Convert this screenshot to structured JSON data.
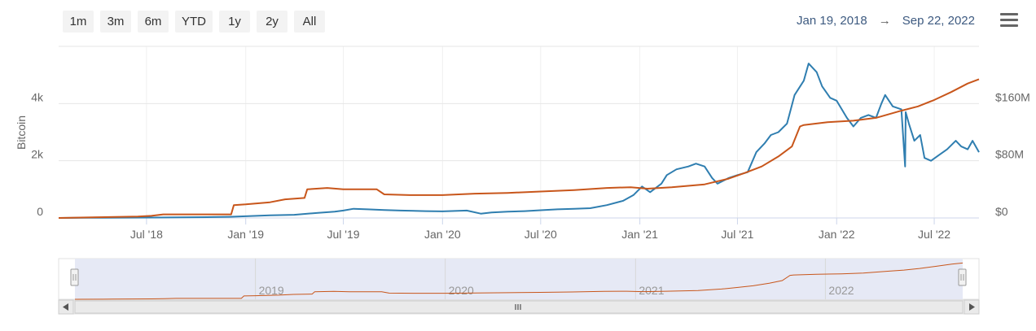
{
  "toolbar": {
    "zoom_buttons": [
      "1m",
      "3m",
      "6m",
      "YTD",
      "1y",
      "2y",
      "All"
    ],
    "range_from": "Jan 19, 2018",
    "range_arrow": "→",
    "range_to": "Sep 22, 2022"
  },
  "colors": {
    "bitcoin_series": "#2f7eb0",
    "usd_series": "#c8561b",
    "navigator_fill": "#e6e9f5"
  },
  "navigator": {
    "year_labels": [
      "2019",
      "2020",
      "2021",
      "2022"
    ],
    "scrollbar_icon": "grip-icon"
  },
  "chart_data": {
    "type": "line",
    "title": "",
    "x_range": [
      "2018-01-19",
      "2022-09-22"
    ],
    "x_tick_labels": [
      "Jul '18",
      "Jan '19",
      "Jul '19",
      "Jan '20",
      "Jul '20",
      "Jan '21",
      "Jul '21",
      "Jan '22",
      "Jul '22"
    ],
    "y_left": {
      "label": "Bitcoin",
      "ylim": [
        0,
        6000
      ],
      "tick_labels": [
        "0",
        "2k",
        "4k"
      ]
    },
    "y_right": {
      "label": "",
      "ylim": [
        0,
        240
      ],
      "tick_labels": [
        "$0",
        "$80M",
        "$160M"
      ]
    },
    "grid": true,
    "series": [
      {
        "axis": "left",
        "points": [
          [
            "2018-01-19",
            0
          ],
          [
            "2018-03-15",
            5
          ],
          [
            "2018-06-01",
            10
          ],
          [
            "2018-07-15",
            15
          ],
          [
            "2018-09-01",
            20
          ],
          [
            "2018-11-01",
            30
          ],
          [
            "2018-12-01",
            40
          ],
          [
            "2019-01-01",
            60
          ],
          [
            "2019-02-15",
            90
          ],
          [
            "2019-04-01",
            110
          ],
          [
            "2019-05-15",
            180
          ],
          [
            "2019-06-15",
            220
          ],
          [
            "2019-07-01",
            260
          ],
          [
            "2019-07-20",
            320
          ],
          [
            "2019-08-15",
            300
          ],
          [
            "2019-09-15",
            280
          ],
          [
            "2019-10-15",
            260
          ],
          [
            "2019-12-01",
            240
          ],
          [
            "2020-01-01",
            230
          ],
          [
            "2020-02-15",
            260
          ],
          [
            "2020-03-12",
            150
          ],
          [
            "2020-04-01",
            190
          ],
          [
            "2020-05-01",
            220
          ],
          [
            "2020-06-01",
            240
          ],
          [
            "2020-07-01",
            270
          ],
          [
            "2020-08-01",
            300
          ],
          [
            "2020-09-01",
            320
          ],
          [
            "2020-10-01",
            340
          ],
          [
            "2020-11-01",
            450
          ],
          [
            "2020-12-01",
            600
          ],
          [
            "2020-12-20",
            800
          ],
          [
            "2021-01-05",
            1100
          ],
          [
            "2021-01-20",
            900
          ],
          [
            "2021-02-10",
            1200
          ],
          [
            "2021-02-20",
            1500
          ],
          [
            "2021-03-10",
            1700
          ],
          [
            "2021-04-01",
            1800
          ],
          [
            "2021-04-15",
            1900
          ],
          [
            "2021-05-01",
            1800
          ],
          [
            "2021-05-15",
            1400
          ],
          [
            "2021-05-25",
            1200
          ],
          [
            "2021-06-15",
            1400
          ],
          [
            "2021-07-01",
            1500
          ],
          [
            "2021-07-20",
            1600
          ],
          [
            "2021-08-05",
            2300
          ],
          [
            "2021-08-20",
            2600
          ],
          [
            "2021-09-01",
            2900
          ],
          [
            "2021-09-15",
            3000
          ],
          [
            "2021-10-01",
            3300
          ],
          [
            "2021-10-15",
            4300
          ],
          [
            "2021-11-01",
            4800
          ],
          [
            "2021-11-10",
            5400
          ],
          [
            "2021-11-25",
            5100
          ],
          [
            "2021-12-05",
            4600
          ],
          [
            "2021-12-20",
            4200
          ],
          [
            "2022-01-01",
            4100
          ],
          [
            "2022-01-20",
            3500
          ],
          [
            "2022-02-01",
            3200
          ],
          [
            "2022-02-15",
            3500
          ],
          [
            "2022-03-01",
            3600
          ],
          [
            "2022-03-15",
            3500
          ],
          [
            "2022-03-25",
            4000
          ],
          [
            "2022-04-01",
            4300
          ],
          [
            "2022-04-15",
            3900
          ],
          [
            "2022-05-01",
            3800
          ],
          [
            "2022-05-08",
            1800
          ],
          [
            "2022-05-09",
            3700
          ],
          [
            "2022-05-15",
            3300
          ],
          [
            "2022-05-25",
            2700
          ],
          [
            "2022-06-05",
            2900
          ],
          [
            "2022-06-13",
            2100
          ],
          [
            "2022-06-25",
            2000
          ],
          [
            "2022-07-10",
            2200
          ],
          [
            "2022-07-25",
            2400
          ],
          [
            "2022-08-10",
            2700
          ],
          [
            "2022-08-20",
            2500
          ],
          [
            "2022-09-01",
            2400
          ],
          [
            "2022-09-10",
            2700
          ],
          [
            "2022-09-22",
            2300
          ]
        ]
      },
      {
        "axis": "right",
        "points": [
          [
            "2018-01-19",
            0
          ],
          [
            "2018-04-01",
            1
          ],
          [
            "2018-06-15",
            2
          ],
          [
            "2018-07-10",
            3
          ],
          [
            "2018-08-01",
            5
          ],
          [
            "2018-10-01",
            5
          ],
          [
            "2018-12-05",
            5
          ],
          [
            "2018-12-10",
            18
          ],
          [
            "2019-01-01",
            19
          ],
          [
            "2019-02-15",
            22
          ],
          [
            "2019-03-15",
            26
          ],
          [
            "2019-04-20",
            28
          ],
          [
            "2019-04-25",
            40
          ],
          [
            "2019-06-01",
            42
          ],
          [
            "2019-07-01",
            40
          ],
          [
            "2019-09-01",
            40
          ],
          [
            "2019-09-15",
            33
          ],
          [
            "2019-11-01",
            32
          ],
          [
            "2020-01-01",
            32
          ],
          [
            "2020-03-01",
            34
          ],
          [
            "2020-05-01",
            35
          ],
          [
            "2020-07-01",
            37
          ],
          [
            "2020-09-01",
            39
          ],
          [
            "2020-11-01",
            42
          ],
          [
            "2020-12-15",
            43
          ],
          [
            "2021-01-15",
            41
          ],
          [
            "2021-03-01",
            43
          ],
          [
            "2021-05-01",
            47
          ],
          [
            "2021-06-15",
            55
          ],
          [
            "2021-07-15",
            63
          ],
          [
            "2021-08-15",
            72
          ],
          [
            "2021-09-15",
            86
          ],
          [
            "2021-10-10",
            100
          ],
          [
            "2021-10-25",
            128
          ],
          [
            "2021-11-01",
            130
          ],
          [
            "2021-12-15",
            134
          ],
          [
            "2022-02-01",
            136
          ],
          [
            "2022-03-15",
            140
          ],
          [
            "2022-05-01",
            150
          ],
          [
            "2022-06-01",
            156
          ],
          [
            "2022-07-01",
            165
          ],
          [
            "2022-08-01",
            176
          ],
          [
            "2022-09-01",
            188
          ],
          [
            "2022-09-22",
            194
          ]
        ]
      }
    ]
  }
}
